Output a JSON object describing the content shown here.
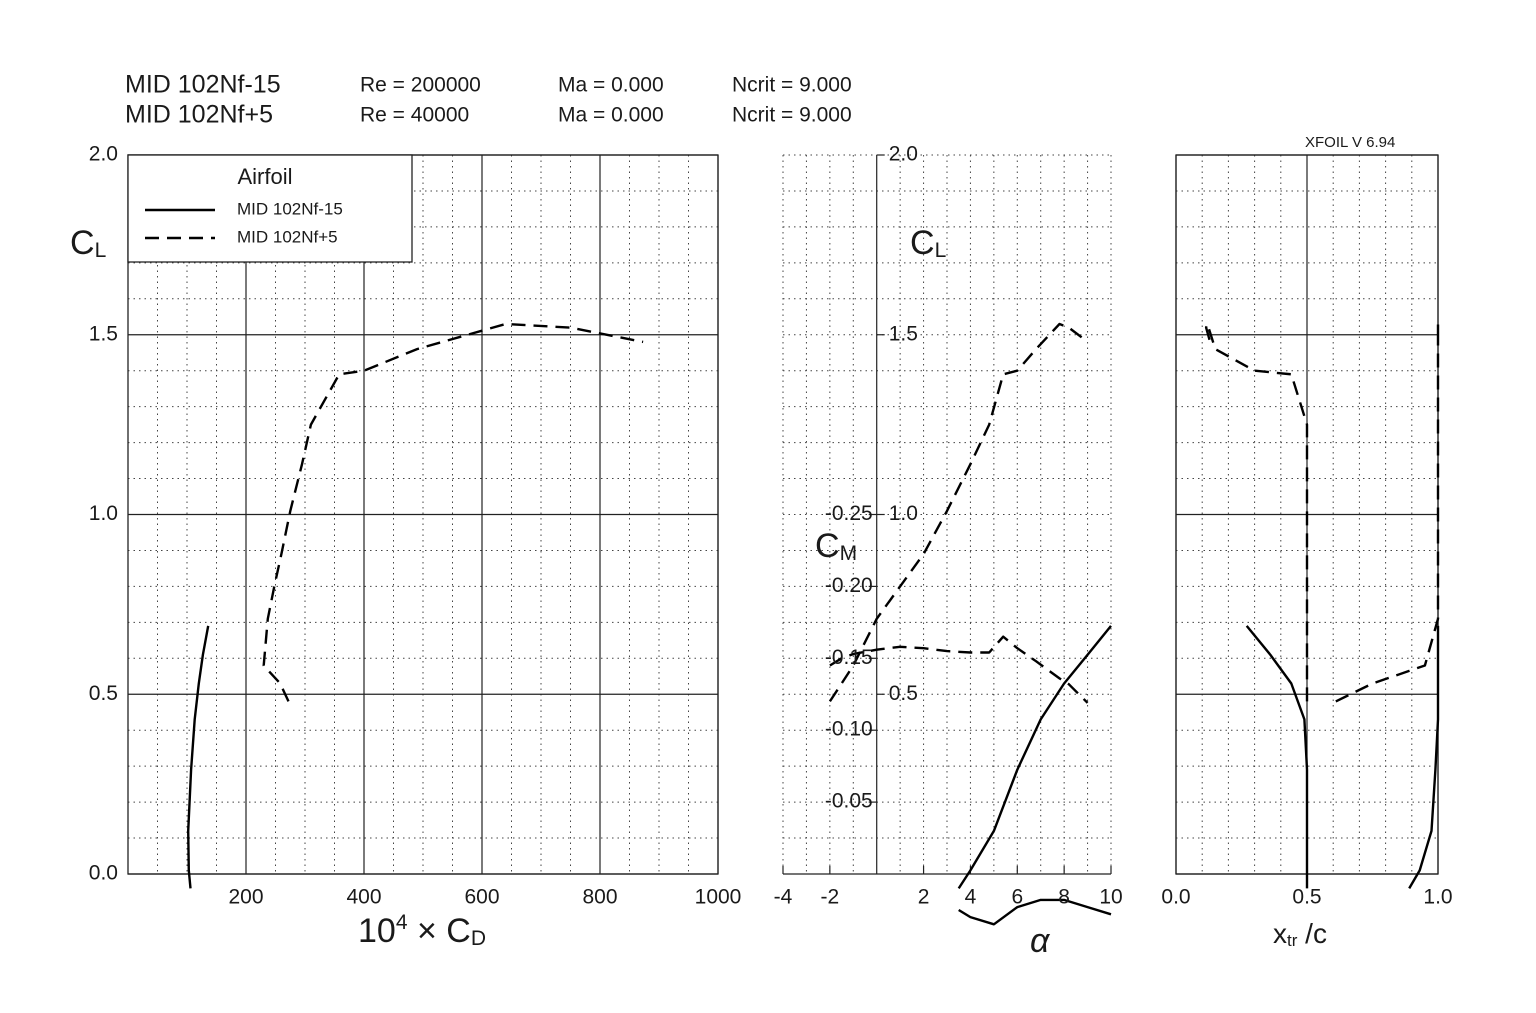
{
  "chart_data": {
    "type": "xfoil_polar",
    "version": "XFOIL V 6.94",
    "legend_title": "Airfoil",
    "series": [
      {
        "name": "MID 102Nf-15",
        "re": "Re = 200000",
        "ma": "Ma = 0.000",
        "ncrit": "Ncrit = 9.000",
        "style": "solid",
        "color": "#000000",
        "alpha": [
          3.5,
          4,
          5,
          6,
          7,
          8,
          9,
          10
        ],
        "cl": [
          -0.04,
          0.01,
          0.12,
          0.29,
          0.43,
          0.53,
          0.61,
          0.69
        ],
        "cd": [
          106,
          103,
          102,
          107,
          113,
          120,
          127,
          136
        ],
        "cm": [
          0.025,
          0.03,
          0.035,
          0.023,
          0.018,
          0.018,
          0.023,
          0.028
        ],
        "xtr_top": [
          0.5,
          0.5,
          0.5,
          0.5,
          0.49,
          0.44,
          0.36,
          0.27
        ],
        "xtr_bot": [
          0.89,
          0.93,
          0.975,
          0.99,
          1.0,
          1.0,
          1.0,
          1.0
        ]
      },
      {
        "name": "MID 102Nf+5",
        "re": "Re = 40000",
        "ma": "Ma = 0.000",
        "ncrit": "Ncrit = 9.000",
        "style": "dashed",
        "color": "#000000",
        "alpha": [
          -2,
          -1.5,
          -1,
          0,
          1,
          2,
          3,
          4,
          4.8,
          5.4,
          6,
          6.8,
          7.8,
          8.2,
          9
        ],
        "cl": [
          0.48,
          0.53,
          0.58,
          0.71,
          0.8,
          0.89,
          1.01,
          1.14,
          1.25,
          1.39,
          1.4,
          1.46,
          1.53,
          1.52,
          1.48
        ],
        "cd": [
          272,
          258,
          230,
          237,
          248,
          260,
          275,
          295,
          310,
          358,
          400,
          490,
          640,
          750,
          873
        ],
        "cm": [
          -0.145,
          -0.15,
          -0.153,
          -0.156,
          -0.158,
          -0.157,
          -0.155,
          -0.154,
          -0.154,
          -0.165,
          -0.157,
          -0.148,
          -0.136,
          -0.132,
          -0.119
        ],
        "xtr_top": [
          0.5,
          0.5,
          0.5,
          0.5,
          0.5,
          0.5,
          0.5,
          0.5,
          0.5,
          0.44,
          0.3,
          0.15,
          0.12,
          0.115,
          0.13
        ],
        "xtr_bot": [
          0.61,
          0.75,
          0.95,
          1.0,
          1.0,
          1.0,
          1.0,
          1.0,
          1.0,
          1.0,
          1.0,
          1.0,
          1.0,
          1.0,
          1.0
        ]
      }
    ],
    "cl_axis": {
      "ylim": [
        0,
        2
      ],
      "yticks": [
        {
          "value": 0,
          "label": "0.0"
        },
        {
          "value": 0.5,
          "label": "0.5"
        },
        {
          "value": 1,
          "label": "1.0"
        },
        {
          "value": 1.5,
          "label": "1.5"
        },
        {
          "value": 2,
          "label": "2.0"
        }
      ],
      "yminor": [
        0.1,
        0.2,
        0.3,
        0.4,
        0.6,
        0.7,
        0.8,
        0.9,
        1.1,
        1.2,
        1.3,
        1.4,
        1.6,
        1.7,
        1.8,
        1.9
      ],
      "label": [
        {
          "text": "C"
        },
        {
          "text": "L",
          "shift": "sub"
        }
      ]
    },
    "cd_panel": {
      "xlim": [
        0,
        1000
      ],
      "major_grid": true,
      "xticks": [
        200,
        400,
        600,
        800,
        1000
      ],
      "xminor": [
        50,
        100,
        150,
        250,
        300,
        350,
        450,
        500,
        550,
        650,
        700,
        750,
        850,
        900,
        950
      ],
      "xlabel": [
        {
          "text": "10"
        },
        {
          "text": "4",
          "shift": "sup"
        },
        {
          "text": " × C"
        },
        {
          "text": "D",
          "shift": "sub"
        }
      ]
    },
    "alpha_panel": {
      "xlim": [
        -4,
        10
      ],
      "major_grid": false,
      "xticks": [
        -4,
        -2,
        2,
        4,
        6,
        8,
        10
      ],
      "xminor": [
        -3,
        -1,
        1,
        3,
        5,
        7,
        9
      ],
      "xlabel": [
        {
          "text": "α"
        }
      ],
      "yticks": [
        {
          "value": 0.5,
          "label": "0.5"
        },
        {
          "value": 1,
          "label": "1.0"
        },
        {
          "value": 1.5,
          "label": "1.5"
        },
        {
          "value": 2,
          "label": "2.0"
        }
      ],
      "y2lim": [
        0,
        -0.5
      ],
      "y2ticks": [
        -0.05,
        {
          "value": -0.1,
          "label": "-0.10"
        },
        -0.15,
        {
          "value": -0.2,
          "label": "-0.20"
        },
        -0.25
      ],
      "y2label": [
        {
          "text": "C"
        },
        {
          "text": "M",
          "shift": "sub"
        }
      ]
    },
    "xtr_panel": {
      "xlim": [
        0,
        1
      ],
      "major_grid": true,
      "xticks": [
        {
          "value": 0,
          "label": "0.0"
        },
        {
          "value": 0.5,
          "label": "0.5"
        },
        {
          "value": 1,
          "label": "1.0"
        }
      ],
      "xminor": [
        0.1,
        0.2,
        0.3,
        0.4,
        0.6,
        0.7,
        0.8,
        0.9
      ],
      "xlabel": [
        {
          "text": "x"
        },
        {
          "text": "tr",
          "shift": "sub"
        },
        {
          "text": " /c"
        }
      ]
    }
  }
}
